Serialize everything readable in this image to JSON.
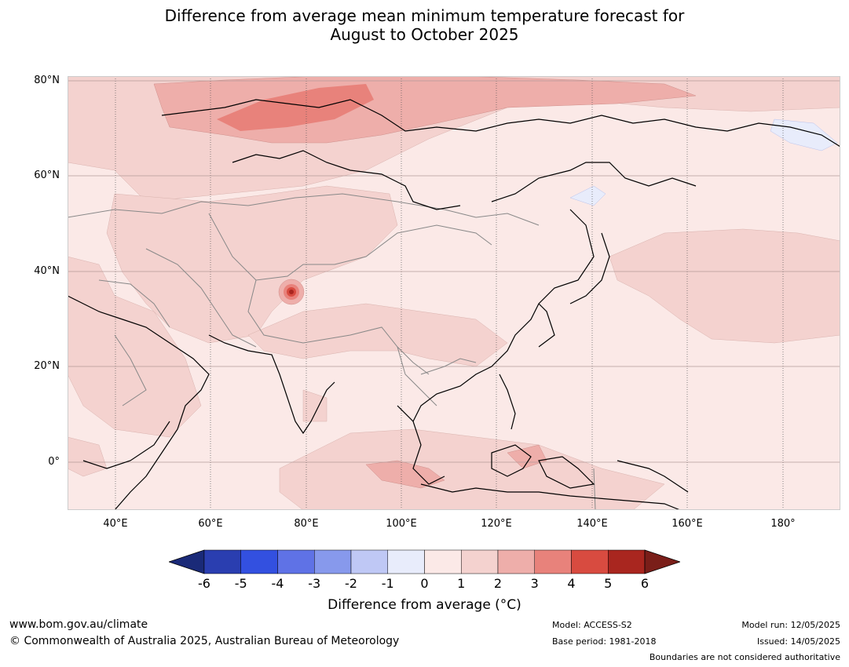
{
  "title": {
    "line1": "Difference from average mean minimum temperature forecast for",
    "line2": "August to October 2025"
  },
  "map": {
    "lat_labels": [
      "80°N",
      "60°N",
      "40°N",
      "20°N",
      "0°"
    ],
    "lon_labels": [
      "40°E",
      "60°E",
      "80°E",
      "100°E",
      "120°E",
      "140°E",
      "160°E",
      "180°"
    ],
    "colors": {
      "background_0_1": "#fbe9e7",
      "level_1_2": "#f4d2cf",
      "level_2_3": "#eeaeaa",
      "level_3_4": "#e8827b",
      "level_4_5": "#d84b40",
      "level_5_6": "#a9261f",
      "level_neg_1_0": "#e8ecfb",
      "borders": "#888888",
      "coastline": "#000000"
    }
  },
  "colorbar": {
    "label": "Difference from average (°C)",
    "ticks": [
      "-6",
      "-5",
      "-4",
      "-3",
      "-2",
      "-1",
      "0",
      "1",
      "2",
      "3",
      "4",
      "5",
      "6"
    ],
    "colors": [
      "#1a2a78",
      "#2a3eb0",
      "#3350e0",
      "#5f72e6",
      "#8799ec",
      "#bfc8f5",
      "#e8ecfb",
      "#fbe9e7",
      "#f4d2cf",
      "#eeaeaa",
      "#e8827b",
      "#d84b40",
      "#a9261f",
      "#7a1e19"
    ]
  },
  "footer": {
    "url": "www.bom.gov.au/climate",
    "copyright": "© Commonwealth of Australia 2025, Australian Bureau of Meteorology",
    "model": "Model: ACCESS-S2",
    "base_period": "Base period: 1981-2018",
    "model_run": "Model run: 12/05/2025",
    "issued": "Issued: 14/05/2025",
    "boundaries": "Boundaries are not considered authoritative"
  }
}
